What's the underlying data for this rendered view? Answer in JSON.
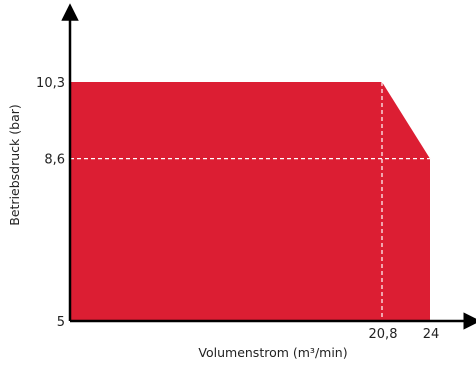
{
  "chart_data": {
    "type": "area",
    "title": "",
    "xlabel": "Volumenstrom (m³/min)",
    "ylabel": "Betriebsdruck (bar)",
    "xlim": [
      0,
      24
    ],
    "ylim": [
      5,
      10.3
    ],
    "x_ticks": [
      {
        "value": 20.8,
        "label": "20,8"
      },
      {
        "value": 24,
        "label": "24"
      }
    ],
    "y_ticks": [
      {
        "value": 10.3,
        "label": "10,3"
      },
      {
        "value": 8.6,
        "label": "8,6"
      },
      {
        "value": 5,
        "label": "5"
      }
    ],
    "series": [
      {
        "points": [
          {
            "x": 0,
            "y": 10.3
          },
          {
            "x": 20.8,
            "y": 10.3
          },
          {
            "x": 24,
            "y": 8.6
          },
          {
            "x": 24,
            "y": 5
          },
          {
            "x": 0,
            "y": 5
          }
        ]
      }
    ],
    "reference_lines": [
      {
        "orientation": "vertical",
        "x": 20.8,
        "y_from": 5,
        "y_to": 10.3
      },
      {
        "orientation": "horizontal",
        "y": 8.6,
        "x_from": 0,
        "x_to": 24
      }
    ],
    "grid": false,
    "colors": {
      "fill": "#dc1e33",
      "axis": "#000000",
      "dashed_line": "#ffffff",
      "text": "#222222"
    }
  }
}
